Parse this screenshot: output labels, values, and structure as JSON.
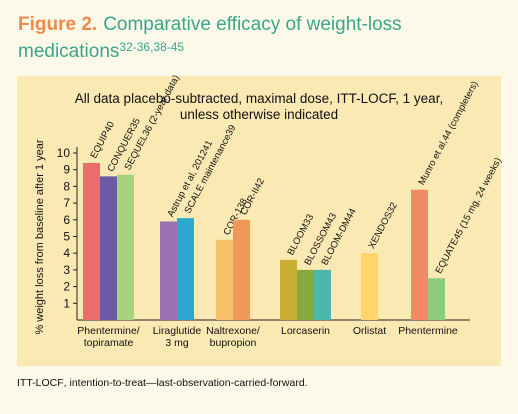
{
  "figure": {
    "label": "Figure 2.",
    "title": "Comparative efficacy of weight-loss medications",
    "refs": "32-36,38-45"
  },
  "chart_data": {
    "type": "bar",
    "subtitle_line1": "All data placebo-subtracted, maximal dose, ITT-LOCF, 1 year,",
    "subtitle_line2": "unless otherwise indicated",
    "ylabel": "% weight loss from baseline after 1 year",
    "ylim": [
      0,
      10
    ],
    "yticks": [
      1,
      2,
      3,
      4,
      5,
      6,
      7,
      8,
      9,
      10
    ],
    "groups": [
      {
        "name": [
          "Phentermine/",
          "topiramate"
        ],
        "bars": [
          {
            "label": "EQUIP40",
            "value": 9.4,
            "color": "#ec6b6b"
          },
          {
            "label": "CONQUER35",
            "value": 8.6,
            "color": "#6b5aa6"
          },
          {
            "label": "SEQUEL36 (2-year data)",
            "value": 8.7,
            "color": "#a7d27e"
          }
        ]
      },
      {
        "name": [
          "Liraglutide",
          "3 mg"
        ],
        "bars": [
          {
            "label": "Astrup et al, 201241",
            "value": 5.9,
            "color": "#9a72b4"
          },
          {
            "label": "SCALE maintenance39",
            "value": 6.1,
            "color": "#2ba7cf"
          }
        ]
      },
      {
        "name": [
          "Naltrexone/",
          "bupropion"
        ],
        "bars": [
          {
            "label": "COR-138",
            "value": 4.8,
            "color": "#f6c16a"
          },
          {
            "label": "COR-II42",
            "value": 6.0,
            "color": "#f0975a"
          }
        ]
      },
      {
        "name": [
          "Lorcaserin"
        ],
        "bars": [
          {
            "label": "BLOOM33",
            "value": 3.6,
            "color": "#c9b034"
          },
          {
            "label": "BLOSSOM43",
            "value": 3.0,
            "color": "#87a83a"
          },
          {
            "label": "BLOOM-DM44",
            "value": 3.0,
            "color": "#4db8a9"
          }
        ]
      },
      {
        "name": [
          "Orlistat"
        ],
        "bars": [
          {
            "label": "XENDOS32",
            "value": 4.0,
            "color": "#ffd56b"
          }
        ]
      },
      {
        "name": [
          "Phentermine"
        ],
        "bars": [
          {
            "label": "Munro et al,44 (completers)",
            "value": 7.8,
            "color": "#f08a65"
          },
          {
            "label": "EQUATE45 (15 mg, 24 weeks)",
            "value": 2.5,
            "color": "#8dcc7c"
          }
        ]
      }
    ]
  },
  "footnote": {
    "abbr": "ITT-LOCF",
    "text": ", intention-to-treat—last-observation-carried-forward."
  }
}
